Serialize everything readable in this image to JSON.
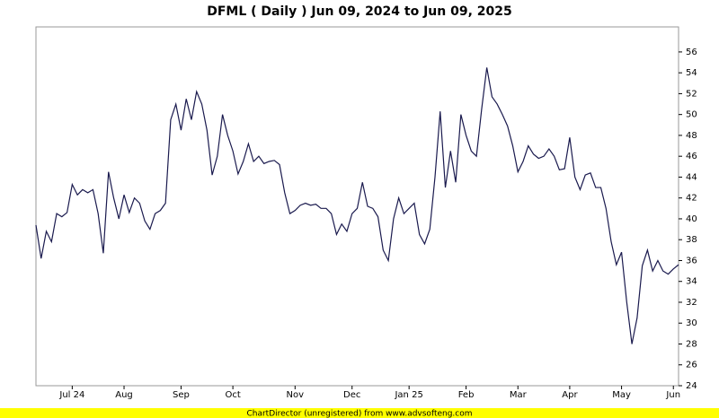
{
  "chart_data": {
    "type": "line",
    "title": "DFML ( Daily ) Jun 09, 2024 to Jun 09, 2025",
    "footer": "ChartDirector (unregistered) from www.advsofteng.com",
    "categories": [
      null,
      null,
      null,
      null,
      null,
      null,
      null,
      "Jul 24",
      null,
      null,
      null,
      null,
      null,
      null,
      null,
      null,
      null,
      "Aug",
      null,
      null,
      null,
      null,
      null,
      null,
      null,
      null,
      null,
      null,
      "Sep",
      null,
      null,
      null,
      null,
      null,
      null,
      null,
      null,
      null,
      "Oct",
      null,
      null,
      null,
      null,
      null,
      null,
      null,
      null,
      null,
      null,
      null,
      "Nov",
      null,
      null,
      null,
      null,
      null,
      null,
      null,
      null,
      null,
      null,
      "Dec",
      null,
      null,
      null,
      null,
      null,
      null,
      null,
      null,
      null,
      null,
      "Jan 25",
      null,
      null,
      null,
      null,
      null,
      null,
      null,
      null,
      null,
      null,
      "Feb",
      null,
      null,
      null,
      null,
      null,
      null,
      null,
      null,
      null,
      "Mar",
      null,
      null,
      null,
      null,
      null,
      null,
      null,
      null,
      null,
      "Apr",
      null,
      null,
      null,
      null,
      null,
      null,
      null,
      null,
      null,
      "May",
      null,
      null,
      null,
      null,
      null,
      null,
      null,
      null,
      null,
      "Jun",
      null
    ],
    "values": [
      39.4,
      36.2,
      38.8,
      37.8,
      40.5,
      40.2,
      40.6,
      43.3,
      42.3,
      42.8,
      42.5,
      42.8,
      40.5,
      36.7,
      44.5,
      42,
      40,
      42.3,
      40.6,
      42,
      41.5,
      39.8,
      39,
      40.5,
      40.8,
      41.5,
      49.5,
      51,
      48.5,
      51.5,
      49.5,
      52.2,
      51,
      48.5,
      44.2,
      46,
      50,
      48,
      46.5,
      44.3,
      45.5,
      47.2,
      45.5,
      46,
      45.3,
      45.5,
      45.6,
      45.2,
      42.5,
      40.5,
      40.8,
      41.3,
      41.5,
      41.3,
      41.4,
      41,
      41,
      40.5,
      38.5,
      39.5,
      38.8,
      40.5,
      41,
      43.5,
      41.2,
      41,
      40.2,
      37,
      36,
      40,
      42,
      40.5,
      41,
      41.5,
      38.5,
      37.6,
      39,
      44,
      50.3,
      43,
      46.5,
      43.5,
      50,
      48,
      46.5,
      46,
      50.5,
      54.5,
      51.7,
      51,
      50,
      48.9,
      47,
      44.5,
      45.5,
      47,
      46.2,
      45.8,
      46,
      46.7,
      46,
      44.7,
      44.8,
      47.8,
      44,
      42.8,
      44.2,
      44.4,
      43,
      43,
      41,
      37.8,
      35.6,
      36.8,
      32,
      28,
      30.5,
      35.5,
      37,
      35,
      36,
      35,
      34.7,
      35.2,
      35.6
    ],
    "color": "#1a1a4e",
    "ylim": [
      24,
      58.4
    ],
    "yticks": [
      24,
      26,
      28,
      30,
      32,
      34,
      36,
      38,
      40,
      42,
      44,
      46,
      48,
      50,
      52,
      54,
      56
    ],
    "grid": false
  }
}
